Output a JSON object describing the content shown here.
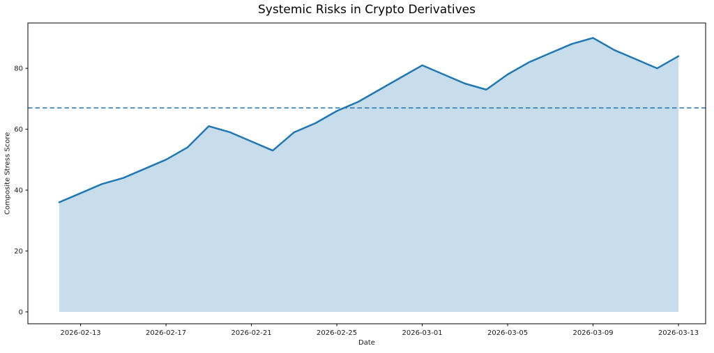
{
  "title": "Systemic Risks in Crypto Derivatives",
  "chart_data": {
    "type": "area",
    "title": "Systemic Risks in Crypto Derivatives",
    "xlabel": "Date",
    "ylabel": "Composite Stress Score",
    "x": [
      "2026-02-12",
      "2026-02-13",
      "2026-02-14",
      "2026-02-15",
      "2026-02-16",
      "2026-02-17",
      "2026-02-18",
      "2026-02-19",
      "2026-02-20",
      "2026-02-21",
      "2026-02-22",
      "2026-02-23",
      "2026-02-24",
      "2026-02-25",
      "2026-02-26",
      "2026-02-27",
      "2026-02-28",
      "2026-03-01",
      "2026-03-02",
      "2026-03-03",
      "2026-03-04",
      "2026-03-05",
      "2026-03-06",
      "2026-03-07",
      "2026-03-08",
      "2026-03-09",
      "2026-03-10",
      "2026-03-11",
      "2026-03-12",
      "2026-03-13"
    ],
    "series": [
      {
        "name": "Composite Stress Score",
        "values": [
          36,
          39,
          42,
          44,
          47,
          50,
          54,
          61,
          59,
          56,
          53,
          59,
          62,
          66,
          69,
          73,
          77,
          81,
          78,
          75,
          73,
          78,
          82,
          85,
          88,
          90,
          86,
          83,
          80,
          84
        ]
      }
    ],
    "threshold": {
      "value": 67,
      "style": "dashed",
      "orientation": "horizontal"
    },
    "x_tick_labels": [
      "2026-02-13",
      "2026-02-17",
      "2026-02-21",
      "2026-02-25",
      "2026-03-01",
      "2026-03-05",
      "2026-03-09",
      "2026-03-13"
    ],
    "y_ticks": [
      0,
      20,
      40,
      60,
      80
    ],
    "ylim": [
      -3.9,
      94.9
    ],
    "area_baseline": 0,
    "grid": false,
    "legend_position": "none",
    "colors": {
      "line": "#1f77b4",
      "fill": "#c7ddec",
      "threshold": "#1f77b4",
      "spine": "#000000"
    }
  }
}
